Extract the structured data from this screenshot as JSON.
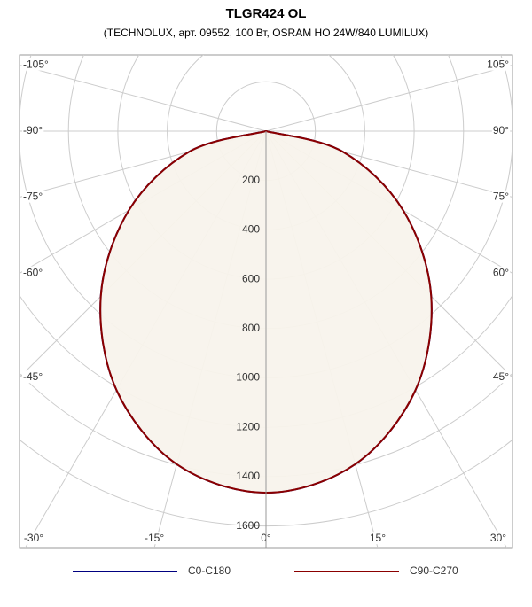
{
  "chart_data": {
    "type": "polar",
    "title": "TLGR424 OL",
    "subtitle": "(TECHNOLUX, арт. 09552, 100 Вт, OSRAM HO 24W/840 LUMILUX)",
    "angles": [
      -90,
      -75,
      -60,
      -45,
      -30,
      -15,
      0,
      15,
      30,
      45,
      60,
      75,
      90
    ],
    "series": [
      {
        "name": "C0-C180",
        "color": "#000080",
        "values": [
          0,
          322,
          641,
          946,
          1211,
          1397,
          1465,
          1397,
          1211,
          946,
          641,
          322,
          0
        ]
      },
      {
        "name": "C90-C270",
        "color": "#8b0000",
        "values": [
          0,
          322,
          641,
          946,
          1211,
          1397,
          1465,
          1397,
          1211,
          946,
          641,
          322,
          0
        ]
      }
    ],
    "rlim": [
      0,
      1600
    ],
    "rticks": [
      200,
      400,
      600,
      800,
      1000,
      1200,
      1400,
      1600
    ],
    "angle_ticks": [
      {
        "value": -105,
        "label": "-105°"
      },
      {
        "value": -90,
        "label": "-90°"
      },
      {
        "value": -75,
        "label": "-75°"
      },
      {
        "value": -60,
        "label": "-60°"
      },
      {
        "value": -45,
        "label": "-45°"
      },
      {
        "value": -30,
        "label": "-30°"
      },
      {
        "value": -15,
        "label": "-15°"
      },
      {
        "value": 0,
        "label": "0°"
      },
      {
        "value": 15,
        "label": "15°"
      },
      {
        "value": 30,
        "label": "30°"
      },
      {
        "value": 45,
        "label": "45°"
      },
      {
        "value": 60,
        "label": "60°"
      },
      {
        "value": 75,
        "label": "75°"
      },
      {
        "value": 90,
        "label": "90°"
      },
      {
        "value": 105,
        "label": "105°"
      }
    ],
    "fill": "#f8f4ec"
  }
}
